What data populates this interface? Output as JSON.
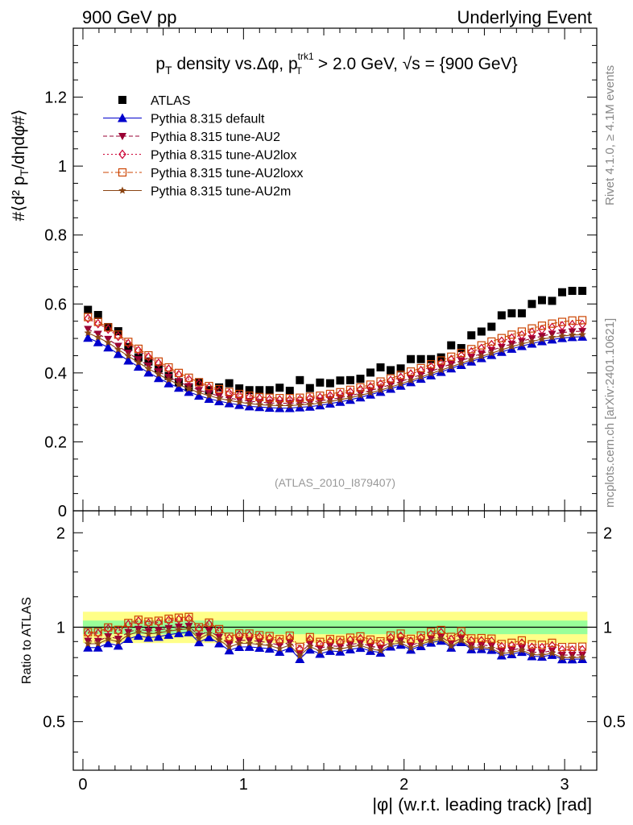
{
  "header": {
    "left": "900 GeV pp",
    "right": "Underlying Event"
  },
  "side_labels": {
    "rivet": "Rivet 4.1.0, ≥ 4.1M events",
    "mcplots": "mcplots.cern.ch [arXiv:2401.10621]"
  },
  "chart_data": [
    {
      "type": "scatter",
      "title": "p_T density vs.Δφ, p_T^trk1 > 2.0 GeV, √s = {900 GeV}",
      "xlabel": "|φ| (w.r.t. leading track) [rad]",
      "ylabel": "#⟨d² p_T/dηdφ#⟩",
      "xlim": [
        -0.06,
        3.2
      ],
      "ylim": [
        0,
        1.4
      ],
      "yticks": [
        0,
        0.2,
        0.4,
        0.6,
        0.8,
        1,
        1.2
      ],
      "annotation": "(ATLAS_2010_I879407)",
      "x": [
        0.0314,
        0.0942,
        0.1571,
        0.2199,
        0.2827,
        0.3456,
        0.4084,
        0.4712,
        0.5341,
        0.5969,
        0.6597,
        0.7226,
        0.7854,
        0.8482,
        0.9111,
        0.9739,
        1.0367,
        1.0996,
        1.1624,
        1.2252,
        1.2881,
        1.3509,
        1.4137,
        1.4765,
        1.5394,
        1.6022,
        1.665,
        1.7279,
        1.7907,
        1.8535,
        1.9164,
        1.9792,
        2.042,
        2.1049,
        2.1677,
        2.2305,
        2.2934,
        2.3562,
        2.419,
        2.4819,
        2.5447,
        2.6075,
        2.6704,
        2.7332,
        2.796,
        2.8588,
        2.9217,
        2.9845,
        3.0473,
        3.1102
      ],
      "series": [
        {
          "name": "ATLAS",
          "color": "#000000",
          "marker": "square",
          "values": [
            0.583,
            0.568,
            0.533,
            0.521,
            0.475,
            0.445,
            0.433,
            0.413,
            0.391,
            0.373,
            0.358,
            0.373,
            0.35,
            0.358,
            0.37,
            0.355,
            0.35,
            0.35,
            0.35,
            0.357,
            0.348,
            0.379,
            0.356,
            0.372,
            0.37,
            0.378,
            0.379,
            0.383,
            0.401,
            0.416,
            0.408,
            0.413,
            0.44,
            0.44,
            0.44,
            0.445,
            0.48,
            0.472,
            0.509,
            0.52,
            0.534,
            0.567,
            0.573,
            0.573,
            0.6,
            0.611,
            0.609,
            0.634,
            0.638,
            0.638
          ]
        },
        {
          "name": "Pythia 8.315 default",
          "color": "#0000cc",
          "marker": "triangle-up",
          "line": "solid",
          "values": [
            0.502,
            0.489,
            0.474,
            0.455,
            0.436,
            0.418,
            0.401,
            0.385,
            0.37,
            0.357,
            0.345,
            0.334,
            0.325,
            0.318,
            0.312,
            0.307,
            0.303,
            0.301,
            0.299,
            0.298,
            0.298,
            0.3,
            0.302,
            0.306,
            0.311,
            0.316,
            0.322,
            0.329,
            0.337,
            0.345,
            0.354,
            0.363,
            0.373,
            0.383,
            0.393,
            0.403,
            0.413,
            0.423,
            0.433,
            0.443,
            0.452,
            0.461,
            0.47,
            0.478,
            0.485,
            0.492,
            0.497,
            0.501,
            0.504,
            0.505
          ]
        },
        {
          "name": "Pythia 8.315 tune-AU2",
          "color": "#990033",
          "marker": "triangle-down",
          "line": "dashed",
          "values": [
            0.527,
            0.513,
            0.498,
            0.478,
            0.458,
            0.439,
            0.421,
            0.404,
            0.388,
            0.374,
            0.361,
            0.35,
            0.341,
            0.333,
            0.327,
            0.322,
            0.318,
            0.315,
            0.313,
            0.312,
            0.312,
            0.313,
            0.315,
            0.319,
            0.323,
            0.328,
            0.334,
            0.341,
            0.349,
            0.357,
            0.366,
            0.375,
            0.385,
            0.395,
            0.405,
            0.415,
            0.426,
            0.436,
            0.446,
            0.456,
            0.466,
            0.475,
            0.484,
            0.492,
            0.5,
            0.507,
            0.513,
            0.517,
            0.52,
            0.521
          ]
        },
        {
          "name": "Pythia 8.315 tune-AU2lox",
          "color": "#cc0033",
          "marker": "diamond-open",
          "line": "dotted",
          "values": [
            0.558,
            0.543,
            0.527,
            0.506,
            0.485,
            0.465,
            0.446,
            0.428,
            0.411,
            0.395,
            0.381,
            0.369,
            0.358,
            0.348,
            0.341,
            0.335,
            0.33,
            0.326,
            0.323,
            0.322,
            0.322,
            0.323,
            0.326,
            0.329,
            0.334,
            0.339,
            0.345,
            0.352,
            0.36,
            0.368,
            0.378,
            0.387,
            0.397,
            0.407,
            0.418,
            0.428,
            0.439,
            0.45,
            0.461,
            0.471,
            0.482,
            0.492,
            0.501,
            0.51,
            0.518,
            0.526,
            0.532,
            0.537,
            0.54,
            0.541
          ]
        },
        {
          "name": "Pythia 8.315 tune-AU2loxx",
          "color": "#cc4400",
          "marker": "square-open",
          "line": "dashdot",
          "values": [
            0.562,
            0.548,
            0.532,
            0.511,
            0.49,
            0.47,
            0.451,
            0.433,
            0.416,
            0.4,
            0.386,
            0.373,
            0.362,
            0.353,
            0.345,
            0.339,
            0.334,
            0.33,
            0.328,
            0.327,
            0.327,
            0.328,
            0.331,
            0.334,
            0.339,
            0.344,
            0.351,
            0.358,
            0.366,
            0.375,
            0.384,
            0.394,
            0.404,
            0.414,
            0.425,
            0.436,
            0.447,
            0.458,
            0.469,
            0.48,
            0.491,
            0.501,
            0.511,
            0.52,
            0.529,
            0.537,
            0.543,
            0.548,
            0.552,
            0.553
          ]
        },
        {
          "name": "Pythia 8.315 tune-AU2m",
          "color": "#8b4513",
          "marker": "star",
          "line": "solid",
          "values": [
            0.516,
            0.503,
            0.488,
            0.468,
            0.449,
            0.43,
            0.412,
            0.396,
            0.38,
            0.366,
            0.354,
            0.343,
            0.334,
            0.326,
            0.32,
            0.315,
            0.311,
            0.308,
            0.306,
            0.305,
            0.305,
            0.307,
            0.309,
            0.312,
            0.317,
            0.322,
            0.328,
            0.335,
            0.342,
            0.35,
            0.359,
            0.368,
            0.378,
            0.388,
            0.398,
            0.408,
            0.418,
            0.428,
            0.438,
            0.448,
            0.457,
            0.467,
            0.476,
            0.484,
            0.491,
            0.498,
            0.503,
            0.507,
            0.51,
            0.511
          ]
        }
      ]
    },
    {
      "type": "scatter",
      "title": "ratio",
      "ylabel": "Ratio to ATLAS",
      "xlabel": "|φ| (w.r.t. leading track) [rad]",
      "xlim": [
        -0.06,
        3.2
      ],
      "ylim": [
        0.35,
        2.35
      ],
      "log_y": true,
      "yticks": [
        0.5,
        1,
        2
      ],
      "xticks": [
        0,
        1,
        2,
        3
      ],
      "bands": {
        "inner": [
          0.95,
          1.05
        ],
        "outer": [
          0.89,
          1.12
        ],
        "inner_color": "#99ff99",
        "outer_color": "#ffff88"
      }
    }
  ]
}
